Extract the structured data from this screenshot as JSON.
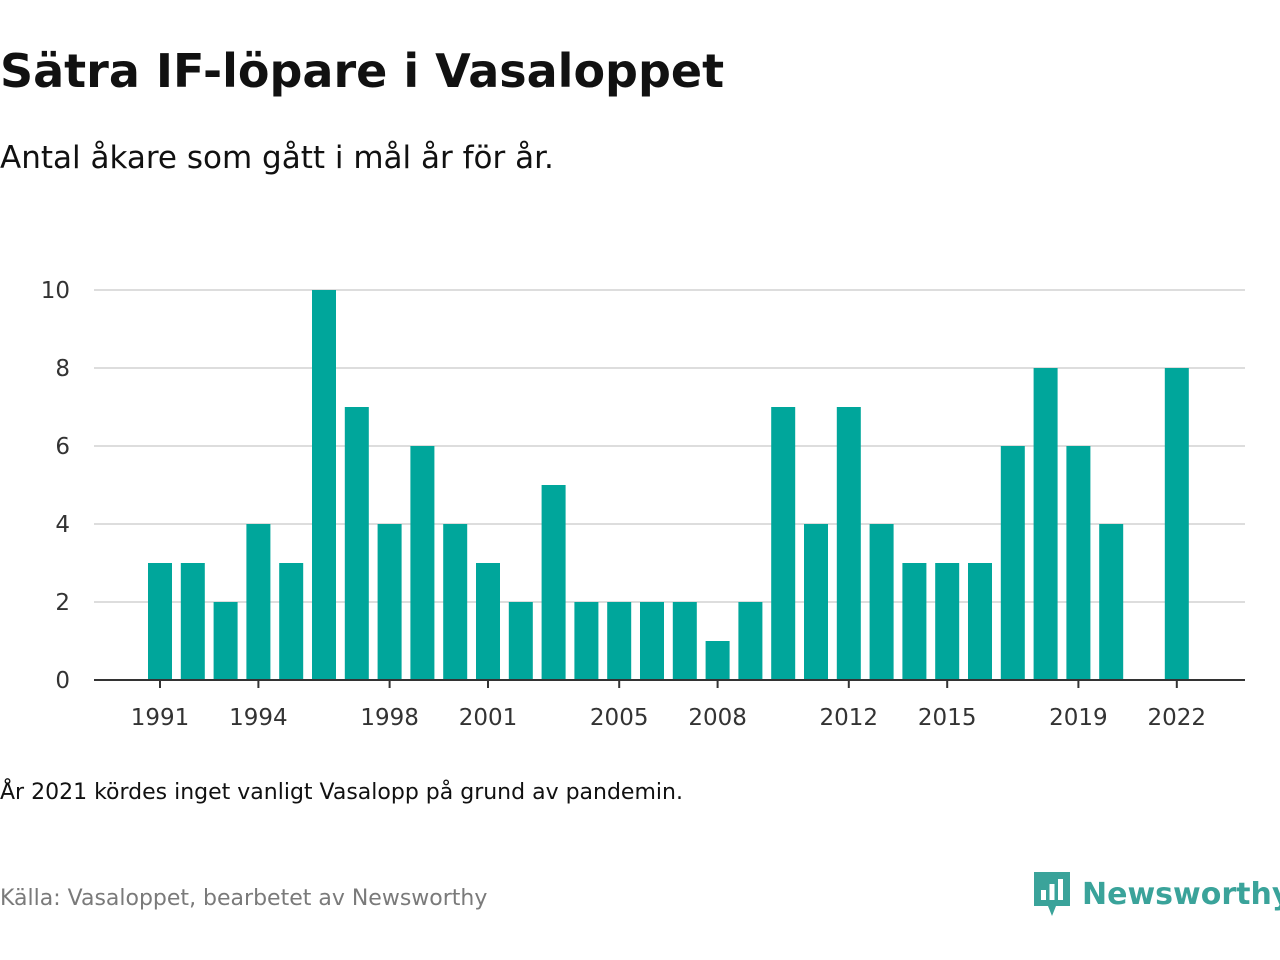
{
  "title": "Sätra IF-löpare i Vasaloppet",
  "subtitle": "Antal åkare som gått i mål år för år.",
  "note": "År 2021 kördes inget vanligt Vasalopp på grund av pandemin.",
  "source": "Källa: Vasaloppet, bearbetet av Newsworthy",
  "brand": {
    "name": "Newsworthy",
    "icon": "newsworthy-logo-icon",
    "color": "#3aa39a"
  },
  "chart_data": {
    "type": "bar",
    "categories": [
      "1991",
      "1992",
      "1993",
      "1994",
      "1995",
      "1996",
      "1997",
      "1998",
      "1999",
      "2000",
      "2001",
      "2002",
      "2003",
      "2004",
      "2005",
      "2006",
      "2007",
      "2008",
      "2009",
      "2010",
      "2011",
      "2012",
      "2013",
      "2014",
      "2015",
      "2016",
      "2017",
      "2018",
      "2019",
      "2020",
      "2021",
      "2022"
    ],
    "values": [
      3,
      3,
      2,
      4,
      3,
      10,
      7,
      4,
      6,
      4,
      3,
      2,
      5,
      2,
      2,
      2,
      2,
      1,
      2,
      7,
      4,
      7,
      4,
      3,
      3,
      3,
      6,
      8,
      6,
      4,
      null,
      8
    ],
    "x_tick_labels": [
      "1991",
      "1994",
      "1998",
      "2001",
      "2005",
      "2008",
      "2012",
      "2015",
      "2019",
      "2022"
    ],
    "y_ticks": [
      0,
      2,
      4,
      6,
      8,
      10
    ],
    "ylim": [
      0,
      10
    ],
    "grid": true,
    "bar_color": "#00a69b",
    "title": "",
    "xlabel": "",
    "ylabel": ""
  }
}
